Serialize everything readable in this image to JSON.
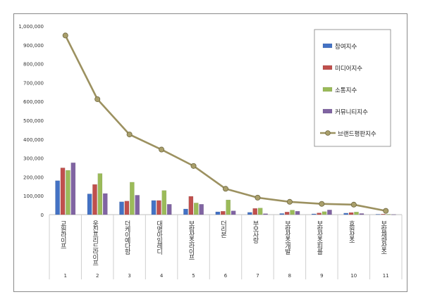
{
  "chart_data": {
    "type": "bar",
    "categories": [
      "1",
      "2",
      "3",
      "4",
      "5",
      "6",
      "7",
      "8",
      "9",
      "10",
      "11"
    ],
    "brand_names": [
      "교원라이프",
      "웅진프리드라이프",
      "더케이예다함",
      "대명아임레디",
      "보람상조라이프",
      "더리본",
      "부모사랑",
      "보람상조개발",
      "보람상조피플",
      "효원상조",
      "보람재향상조"
    ],
    "series": [
      {
        "name": "참여지수",
        "type": "bar",
        "color": "#4472c4",
        "values": [
          180000,
          110000,
          68000,
          75000,
          30000,
          15000,
          12000,
          6000,
          4000,
          8000,
          2000
        ]
      },
      {
        "name": "미디어지수",
        "type": "bar",
        "color": "#c0504d",
        "values": [
          248000,
          160000,
          72000,
          75000,
          97000,
          18000,
          33000,
          14000,
          9000,
          11000,
          3000
        ]
      },
      {
        "name": "소통지수",
        "type": "bar",
        "color": "#9bbb59",
        "values": [
          235000,
          218000,
          172000,
          128000,
          62000,
          78000,
          35000,
          24000,
          16000,
          14000,
          2000
        ]
      },
      {
        "name": "커뮤니티지수",
        "type": "bar",
        "color": "#8064a2",
        "values": [
          275000,
          112000,
          103000,
          55000,
          55000,
          20000,
          5000,
          18000,
          25000,
          6000,
          1000
        ]
      },
      {
        "name": "브랜드평판지수",
        "type": "line",
        "color": "#9c9160",
        "values": [
          950000,
          612000,
          425000,
          345000,
          258000,
          137000,
          90000,
          68000,
          57000,
          53000,
          20000
        ]
      }
    ],
    "yticks": [
      "0",
      "100,000",
      "200,000",
      "300,000",
      "400,000",
      "500,000",
      "600,000",
      "700,000",
      "800,000",
      "900,000",
      "1,000,000"
    ],
    "ylim": [
      0,
      1000000
    ],
    "grid": false,
    "legend": "right"
  }
}
